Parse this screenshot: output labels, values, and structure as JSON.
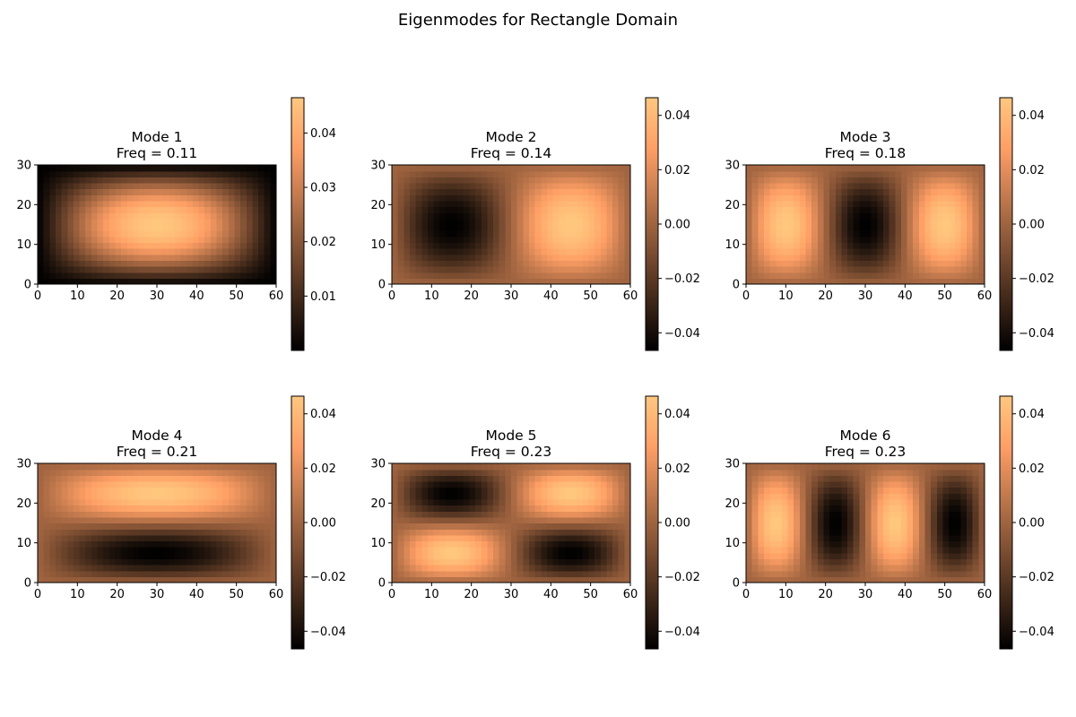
{
  "figure": {
    "title": "Eigenmodes for Rectangle Domain"
  },
  "colormap": {
    "name": "copper",
    "low": "#000000",
    "high": "#ffc77f"
  },
  "chart_data": [
    {
      "type": "heatmap",
      "title_line1": "Mode 1",
      "title_line2": "Freq = 0.11",
      "field": "sin(pi*x/60)*sin(pi*y/30)",
      "nx_mode": 1,
      "ny_mode": 1,
      "amplitude": 0.0465,
      "xlim": [
        0,
        60
      ],
      "ylim": [
        0,
        30
      ],
      "xticks": [
        0,
        10,
        20,
        30,
        40,
        50,
        60
      ],
      "yticks": [
        0,
        10,
        20,
        30
      ],
      "colorbar_range": [
        0.0,
        0.0465
      ],
      "colorbar_ticks": [
        0.01,
        0.02,
        0.03,
        0.04
      ],
      "colorbar_labels": [
        "0.01",
        "0.02",
        "0.03",
        "0.04"
      ]
    },
    {
      "type": "heatmap",
      "title_line1": "Mode 2",
      "title_line2": "Freq = 0.14",
      "field": "-sin(2*pi*x/60)*sin(pi*y/30)",
      "nx_mode": 2,
      "ny_mode": 1,
      "amplitude": 0.0465,
      "xlim": [
        0,
        60
      ],
      "ylim": [
        0,
        30
      ],
      "xticks": [
        0,
        10,
        20,
        30,
        40,
        50,
        60
      ],
      "yticks": [
        0,
        10,
        20,
        30
      ],
      "colorbar_range": [
        -0.0465,
        0.0465
      ],
      "colorbar_ticks": [
        -0.04,
        -0.02,
        0.0,
        0.02,
        0.04
      ],
      "colorbar_labels": [
        "−0.04",
        "−0.02",
        "0.00",
        "0.02",
        "0.04"
      ]
    },
    {
      "type": "heatmap",
      "title_line1": "Mode 3",
      "title_line2": "Freq = 0.18",
      "field": "sin(3*pi*x/60)*sin(pi*y/30)",
      "nx_mode": 3,
      "ny_mode": 1,
      "amplitude": 0.0465,
      "xlim": [
        0,
        60
      ],
      "ylim": [
        0,
        30
      ],
      "xticks": [
        0,
        10,
        20,
        30,
        40,
        50,
        60
      ],
      "yticks": [
        0,
        10,
        20,
        30
      ],
      "colorbar_range": [
        -0.0465,
        0.0465
      ],
      "colorbar_ticks": [
        -0.04,
        -0.02,
        0.0,
        0.02,
        0.04
      ],
      "colorbar_labels": [
        "−0.04",
        "−0.02",
        "0.00",
        "0.02",
        "0.04"
      ]
    },
    {
      "type": "heatmap",
      "title_line1": "Mode 4",
      "title_line2": "Freq = 0.21",
      "field": "-sin(pi*x/60)*sin(2*pi*y/30)",
      "nx_mode": 1,
      "ny_mode": 2,
      "amplitude": 0.0465,
      "xlim": [
        0,
        60
      ],
      "ylim": [
        0,
        30
      ],
      "xticks": [
        0,
        10,
        20,
        30,
        40,
        50,
        60
      ],
      "yticks": [
        0,
        10,
        20,
        30
      ],
      "colorbar_range": [
        -0.0465,
        0.0465
      ],
      "colorbar_ticks": [
        -0.04,
        -0.02,
        0.0,
        0.02,
        0.04
      ],
      "colorbar_labels": [
        "−0.04",
        "−0.02",
        "0.00",
        "0.02",
        "0.04"
      ]
    },
    {
      "type": "heatmap",
      "title_line1": "Mode 5",
      "title_line2": "Freq = 0.23",
      "field": "sin(2*pi*x/60)*sin(2*pi*y/30)",
      "nx_mode": 2,
      "ny_mode": 2,
      "amplitude": 0.0465,
      "xlim": [
        0,
        60
      ],
      "ylim": [
        0,
        30
      ],
      "xticks": [
        0,
        10,
        20,
        30,
        40,
        50,
        60
      ],
      "yticks": [
        0,
        10,
        20,
        30
      ],
      "colorbar_range": [
        -0.0465,
        0.0465
      ],
      "colorbar_ticks": [
        -0.04,
        -0.02,
        0.0,
        0.02,
        0.04
      ],
      "colorbar_labels": [
        "−0.04",
        "−0.02",
        "0.00",
        "0.02",
        "0.04"
      ]
    },
    {
      "type": "heatmap",
      "title_line1": "Mode 6",
      "title_line2": "Freq = 0.23",
      "field": "sin(4*pi*x/60)*sin(pi*y/30)",
      "nx_mode": 4,
      "ny_mode": 1,
      "amplitude": 0.0465,
      "xlim": [
        0,
        60
      ],
      "ylim": [
        0,
        30
      ],
      "xticks": [
        0,
        10,
        20,
        30,
        40,
        50,
        60
      ],
      "yticks": [
        0,
        10,
        20,
        30
      ],
      "colorbar_range": [
        -0.0465,
        0.0465
      ],
      "colorbar_ticks": [
        -0.04,
        -0.02,
        0.0,
        0.02,
        0.04
      ],
      "colorbar_labels": [
        "−0.04",
        "−0.02",
        "0.00",
        "0.02",
        "0.04"
      ]
    }
  ]
}
